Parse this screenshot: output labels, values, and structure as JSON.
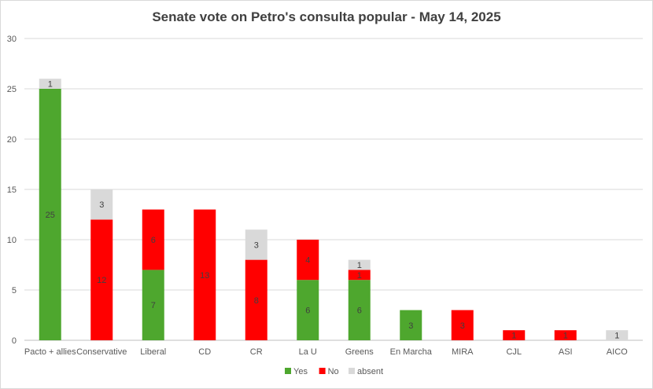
{
  "chart_data": {
    "type": "bar",
    "stacked": true,
    "title": "Senate vote on Petro's consulta popular - May 14, 2025",
    "categories": [
      "Pacto + allies",
      "Conservative",
      "Liberal",
      "CD",
      "CR",
      "La U",
      "Greens",
      "En Marcha",
      "MIRA",
      "CJL",
      "ASI",
      "AICO"
    ],
    "series": [
      {
        "name": "Yes",
        "color": "#4ea72e",
        "values": [
          25,
          0,
          7,
          0,
          0,
          6,
          6,
          3,
          0,
          0,
          0,
          0
        ]
      },
      {
        "name": "No",
        "color": "#ff0000",
        "values": [
          0,
          12,
          6,
          13,
          8,
          4,
          1,
          0,
          3,
          1,
          1,
          0
        ]
      },
      {
        "name": "absent",
        "color": "#d9d9d9",
        "values": [
          1,
          3,
          0,
          0,
          3,
          0,
          1,
          0,
          0,
          0,
          0,
          1
        ]
      }
    ],
    "ylim": [
      0,
      30
    ],
    "yticks": [
      0,
      5,
      10,
      15,
      20,
      25,
      30
    ],
    "grid": true,
    "legend_position": "bottom"
  }
}
